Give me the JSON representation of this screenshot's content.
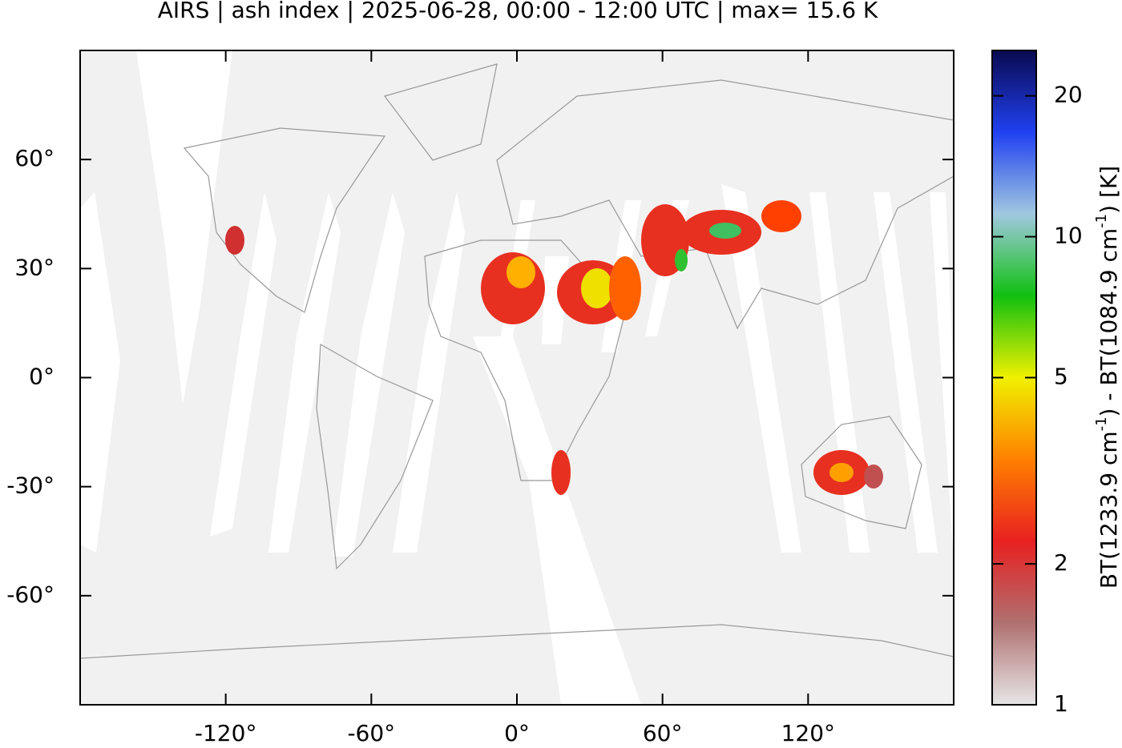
{
  "chart_data": {
    "type": "map",
    "title": "AIRS | ash index | 2025-06-28, 00:00 - 12:00 UTC | max= 15.6 K",
    "xlim": [
      -180,
      180
    ],
    "ylim": [
      -90,
      90
    ],
    "xticks": [
      {
        "value": -120,
        "label": "-120°"
      },
      {
        "value": -60,
        "label": "-60°"
      },
      {
        "value": 0,
        "label": "0°"
      },
      {
        "value": 60,
        "label": "60°"
      },
      {
        "value": 120,
        "label": "120°"
      }
    ],
    "yticks": [
      {
        "value": 60,
        "label": "60°"
      },
      {
        "value": 30,
        "label": "30°"
      },
      {
        "value": 0,
        "label": "0°"
      },
      {
        "value": -30,
        "label": "-30°"
      },
      {
        "value": -60,
        "label": "-60°"
      }
    ],
    "colorbar": {
      "label": [
        "BT(1233.9 cm",
        "-1",
        ") - BT(1084.9 cm",
        "-1",
        ") [K]"
      ],
      "clim": [
        1,
        25
      ],
      "log": true,
      "ticks": [
        1,
        2,
        5,
        10,
        20
      ],
      "colors": [
        "#e6e6e6",
        "#b07070",
        "#e82020",
        "#ff8000",
        "#f0f000",
        "#10c010",
        "#a0c8e0",
        "#2040f0",
        "#0a0a50"
      ]
    }
  }
}
